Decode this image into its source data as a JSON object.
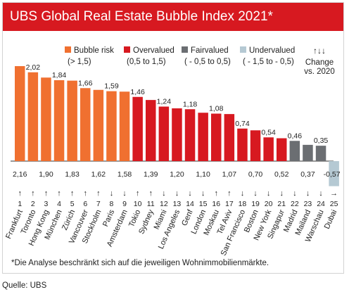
{
  "chart_data": {
    "type": "bar",
    "title": "UBS Global Real Estate Bubble Index 2021*",
    "categories": [
      "Frankfurt",
      "Toronto",
      "Hong Kong",
      "München",
      "Zürich",
      "Vancouver",
      "Stockholm",
      "Paris",
      "Amsterdam",
      "Tokio",
      "Sydney",
      "Miami",
      "Los Angeles",
      "Genf",
      "London",
      "Moskau",
      "Tel Aviv",
      "San Francisco",
      "Boston",
      "New York",
      "Singapur",
      "Madrid",
      "Mailand",
      "Warschau",
      "Dubai"
    ],
    "index_numbers": [
      "1",
      "2",
      "3",
      "4",
      "5",
      "6",
      "7",
      "8",
      "9",
      "10",
      "11",
      "12",
      "13",
      "14",
      "15",
      "16",
      "17",
      "18",
      "19",
      "20",
      "21",
      "22",
      "23",
      "24",
      "25"
    ],
    "series": [
      {
        "values": [
          2.16,
          2.02,
          1.9,
          1.84,
          1.83,
          1.66,
          1.62,
          1.59,
          1.58,
          1.46,
          1.39,
          1.24,
          1.2,
          1.18,
          1.1,
          1.08,
          1.07,
          0.74,
          0.7,
          0.54,
          0.52,
          0.46,
          0.37,
          0.35,
          -0.57
        ]
      }
    ],
    "top_labels": [
      "",
      "2,02",
      "",
      "1,84",
      "",
      "1,66",
      "",
      "1,59",
      "",
      "1,46",
      "",
      "1,24",
      "",
      "1,18",
      "",
      "1,08",
      "",
      "0,74",
      "",
      "0,54",
      "",
      "0,46",
      "",
      "0,35",
      ""
    ],
    "bottom_labels": [
      "2,16",
      "",
      "1,90",
      "",
      "1,83",
      "",
      "1,62",
      "",
      "1,58",
      "",
      "1,39",
      "",
      "1,20",
      "",
      "1,10",
      "",
      "1,07",
      "",
      "0,70",
      "",
      "0,52",
      "",
      "0,37",
      "",
      "-0,57"
    ],
    "change_arrows": [
      "↑",
      "↑",
      "↑",
      "↑",
      "↑",
      "↑",
      "↑",
      "↓",
      "↓",
      "↑",
      "↑",
      "↓",
      "↓",
      "↓",
      "↓",
      "↑",
      "↑",
      "↓",
      "↓",
      "↓",
      "↓",
      "↓",
      "↓",
      "↓",
      "→"
    ],
    "categories_class": [
      "bubble",
      "bubble",
      "bubble",
      "bubble",
      "bubble",
      "bubble",
      "bubble",
      "bubble",
      "bubble",
      "over",
      "over",
      "over",
      "over",
      "over",
      "over",
      "over",
      "over",
      "over",
      "over",
      "over",
      "over",
      "fair",
      "fair",
      "fair",
      "under"
    ],
    "legend": [
      {
        "key": "bubble",
        "label": "Bubble risk",
        "range": "(> 1,5)",
        "color": "#f07030"
      },
      {
        "key": "over",
        "label": "Overvalued",
        "range": "(0,5 to 1,5)",
        "color": "#d71920"
      },
      {
        "key": "fair",
        "label": "Fairvalued",
        "range": "( - 0,5 to 0,5)",
        "color": "#6b6e72"
      },
      {
        "key": "under",
        "label": "Undervalued",
        "range": "( - 1,5 to - 0,5)",
        "color": "#b5c9d3"
      }
    ],
    "change_legend": {
      "arrows": "↑↓↓",
      "line1": "Change",
      "line2": "vs. 2020"
    },
    "ylim": [
      -0.6,
      2.2
    ],
    "legend_position": "top",
    "grid": false
  },
  "footnote": "*Die Analyse beschränkt sich auf die jeweiligen Wohnimmobilienmärkte.",
  "source": "Quelle: UBS"
}
